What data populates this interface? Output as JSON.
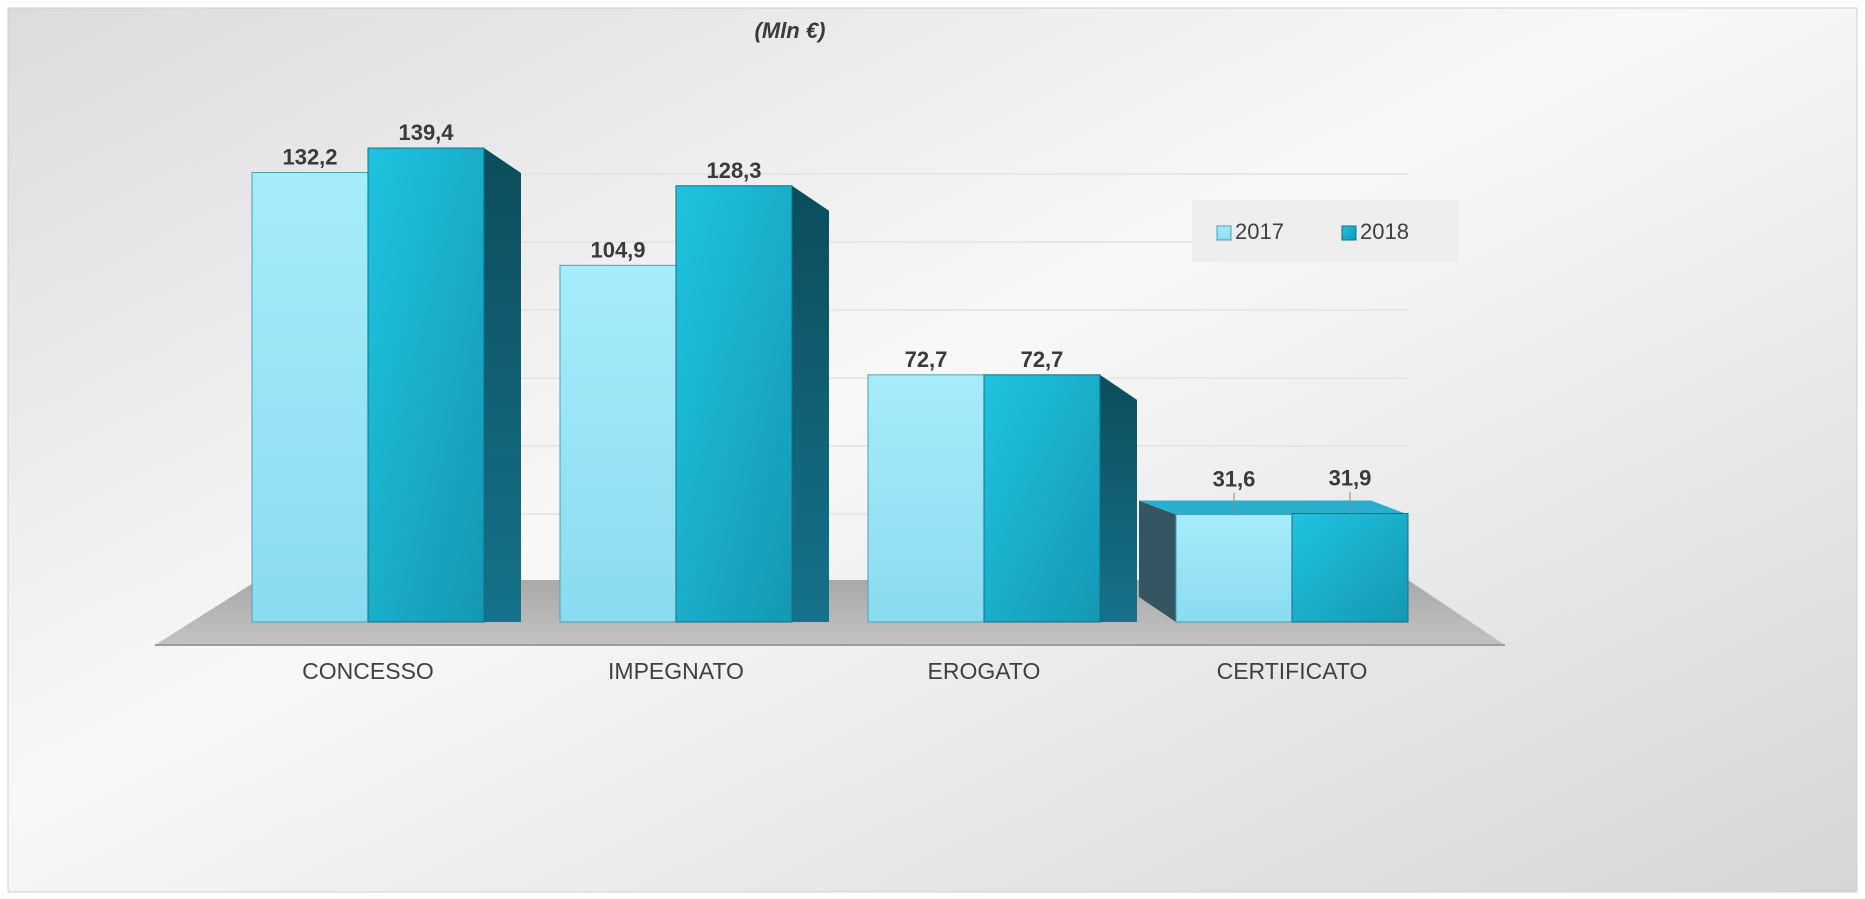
{
  "chart_data": {
    "type": "bar",
    "title": "(Mln €)",
    "categories": [
      "CONCESSO",
      "IMPEGNATO",
      "EROGATO",
      "CERTIFICATO"
    ],
    "series": [
      {
        "name": "2017",
        "values": [
          132.2,
          104.9,
          72.7,
          31.6
        ],
        "labels": [
          "132,2",
          "104,9",
          "72,7",
          "31,6"
        ],
        "color": "#8fe0f3"
      },
      {
        "name": "2018",
        "values": [
          139.4,
          128.3,
          72.7,
          31.9
        ],
        "labels": [
          "139,4",
          "128,3",
          "72,7",
          "31,9"
        ],
        "color": "#1ab6d2"
      }
    ],
    "ylim": [
      0,
      160
    ],
    "grid": true,
    "legend_position": "top-right",
    "style": "3d-clustered-column"
  }
}
